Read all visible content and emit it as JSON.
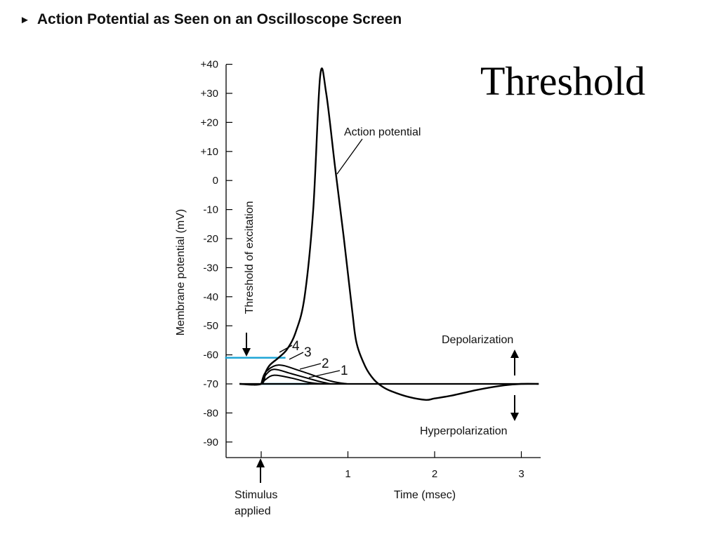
{
  "header": {
    "bullet_icon": "right-triangle-bullet-icon",
    "title": "Action Potential as Seen on an Oscilloscope Screen"
  },
  "slide_word": "Threshold",
  "chart_data": {
    "type": "line",
    "title": "Action Potential as Seen on an Oscilloscope Screen",
    "xlabel": "Time (msec)",
    "ylabel": "Membrane potential (mV)",
    "xlim": [
      -0.4,
      3.2
    ],
    "ylim": [
      -95,
      40
    ],
    "x_ticks": [
      1,
      2,
      3
    ],
    "y_ticks": [
      40,
      30,
      20,
      10,
      0,
      -10,
      -20,
      -30,
      -40,
      -50,
      -60,
      -70,
      -80,
      -90
    ],
    "y_tick_labels": [
      "+40",
      "+30",
      "+20",
      "+10",
      "0",
      "-10",
      "-20",
      "-30",
      "-40",
      "-50",
      "-60",
      "-70",
      "-80",
      "-90"
    ],
    "grid": false,
    "colors": {
      "trace": "#000000",
      "threshold_lines": "#1ea6d6"
    },
    "series": [
      {
        "name": "Action potential",
        "x": [
          -0.25,
          0.0,
          0.05,
          0.1,
          0.2,
          0.3,
          0.4,
          0.5,
          0.6,
          0.68,
          0.75,
          0.85,
          0.95,
          1.05,
          1.1,
          1.2,
          1.3,
          1.4,
          1.5,
          1.7,
          1.9,
          2.0,
          2.2,
          2.5,
          2.8,
          3.0,
          3.2
        ],
        "y": [
          -70,
          -70,
          -66,
          -63.5,
          -61,
          -58,
          -52,
          -40,
          -10,
          36,
          30,
          5,
          -19,
          -45,
          -56,
          -64,
          -68.5,
          -71,
          -72.5,
          -74.5,
          -75.5,
          -75,
          -74,
          -72,
          -70.5,
          -70,
          -70
        ]
      },
      {
        "name": "1",
        "x": [
          0.0,
          0.05,
          0.15,
          0.35,
          0.55,
          0.7
        ],
        "y": [
          -70,
          -68.5,
          -67,
          -68,
          -69.5,
          -70
        ]
      },
      {
        "name": "2",
        "x": [
          0.0,
          0.05,
          0.15,
          0.35,
          0.65,
          0.8
        ],
        "y": [
          -70,
          -67,
          -65,
          -66.5,
          -69,
          -70
        ]
      },
      {
        "name": "3",
        "x": [
          0.0,
          0.05,
          0.2,
          0.45,
          0.8,
          1.0
        ],
        "y": [
          -70,
          -66,
          -63.5,
          -65.5,
          -69,
          -70
        ]
      },
      {
        "name": "4",
        "x": [
          0.0,
          0.05,
          0.1,
          0.2
        ],
        "y": [
          -70,
          -66,
          -63.5,
          -61
        ]
      }
    ],
    "threshold": {
      "label": "Threshold of excitation",
      "value": -61,
      "x_range": [
        -0.4,
        0.28
      ]
    },
    "resting_marker": {
      "value": -70,
      "x_range": [
        0.0,
        0.55
      ]
    },
    "annotations": {
      "action_potential": "Action potential",
      "depolarization": "Depolarization",
      "hyperpolarization": "Hyperpolarization",
      "stimulus": [
        "Stimulus",
        "applied"
      ],
      "labels_1_4": [
        "1",
        "2",
        "3",
        "4"
      ]
    },
    "baseline": {
      "value": -70,
      "x_range": [
        -0.25,
        3.2
      ]
    }
  }
}
